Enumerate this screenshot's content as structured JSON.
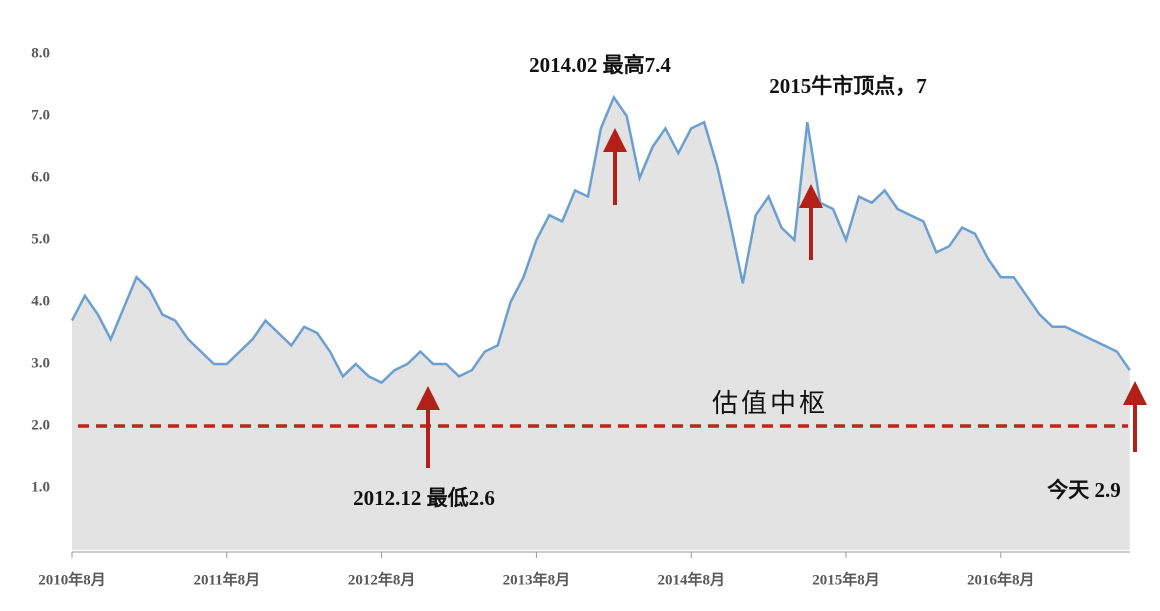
{
  "chart_data": {
    "type": "area",
    "categories": [
      "2010年8月",
      null,
      null,
      null,
      null,
      null,
      null,
      null,
      null,
      null,
      null,
      null,
      "2011年8月",
      null,
      null,
      null,
      null,
      null,
      null,
      null,
      null,
      null,
      null,
      null,
      "2012年8月",
      null,
      null,
      null,
      null,
      null,
      null,
      null,
      null,
      null,
      null,
      null,
      "2013年8月",
      null,
      null,
      null,
      null,
      null,
      null,
      null,
      null,
      null,
      null,
      null,
      "2014年8月",
      null,
      null,
      null,
      null,
      null,
      null,
      null,
      null,
      null,
      null,
      null,
      "2015年8月",
      null,
      null,
      null,
      null,
      null,
      null,
      null,
      null,
      null,
      null,
      null,
      "2016年8月",
      null,
      null,
      null,
      null,
      null,
      null,
      null,
      null,
      null,
      null
    ],
    "values": [
      3.7,
      4.1,
      3.8,
      3.4,
      3.9,
      4.4,
      4.2,
      3.8,
      3.7,
      3.4,
      3.2,
      3.0,
      3.0,
      3.2,
      3.4,
      3.7,
      3.5,
      3.3,
      3.6,
      3.5,
      3.2,
      2.8,
      3.0,
      2.8,
      2.7,
      2.9,
      3.0,
      3.2,
      3.0,
      3.0,
      2.8,
      2.9,
      3.2,
      3.3,
      4.0,
      4.4,
      5.0,
      5.4,
      5.3,
      5.8,
      5.7,
      6.8,
      7.3,
      7.0,
      6.0,
      6.5,
      6.8,
      6.4,
      6.8,
      6.9,
      6.2,
      5.3,
      4.3,
      5.4,
      5.7,
      5.2,
      5.0,
      6.9,
      5.6,
      5.5,
      5.0,
      5.7,
      5.6,
      5.8,
      5.5,
      5.4,
      5.3,
      4.8,
      4.9,
      5.2,
      5.1,
      4.7,
      4.4,
      4.4,
      4.1,
      3.8,
      3.6,
      3.6,
      3.5,
      3.4,
      3.3,
      3.2,
      2.9
    ],
    "color": "#6b9fd1",
    "fill": "#e3e3e3",
    "ylim": [
      0,
      8
    ],
    "yticks": [
      {
        "value": 1,
        "label": "1.0"
      },
      {
        "value": 2,
        "label": "2.0"
      },
      {
        "value": 3,
        "label": "3.0"
      },
      {
        "value": 4,
        "label": "4.0"
      },
      {
        "value": 5,
        "label": "5.0"
      },
      {
        "value": 6,
        "label": "6.0"
      },
      {
        "value": 7,
        "label": "7.0"
      },
      {
        "value": 8,
        "label": "8.0"
      }
    ],
    "reference_line": {
      "value": 2,
      "label": "估值中枢",
      "color": "#c0241c"
    },
    "annotations": [
      "2014.02 最高7.4",
      "2015牛市顶点，7",
      "2012.12 最低2.6",
      "今天 2.9"
    ]
  }
}
